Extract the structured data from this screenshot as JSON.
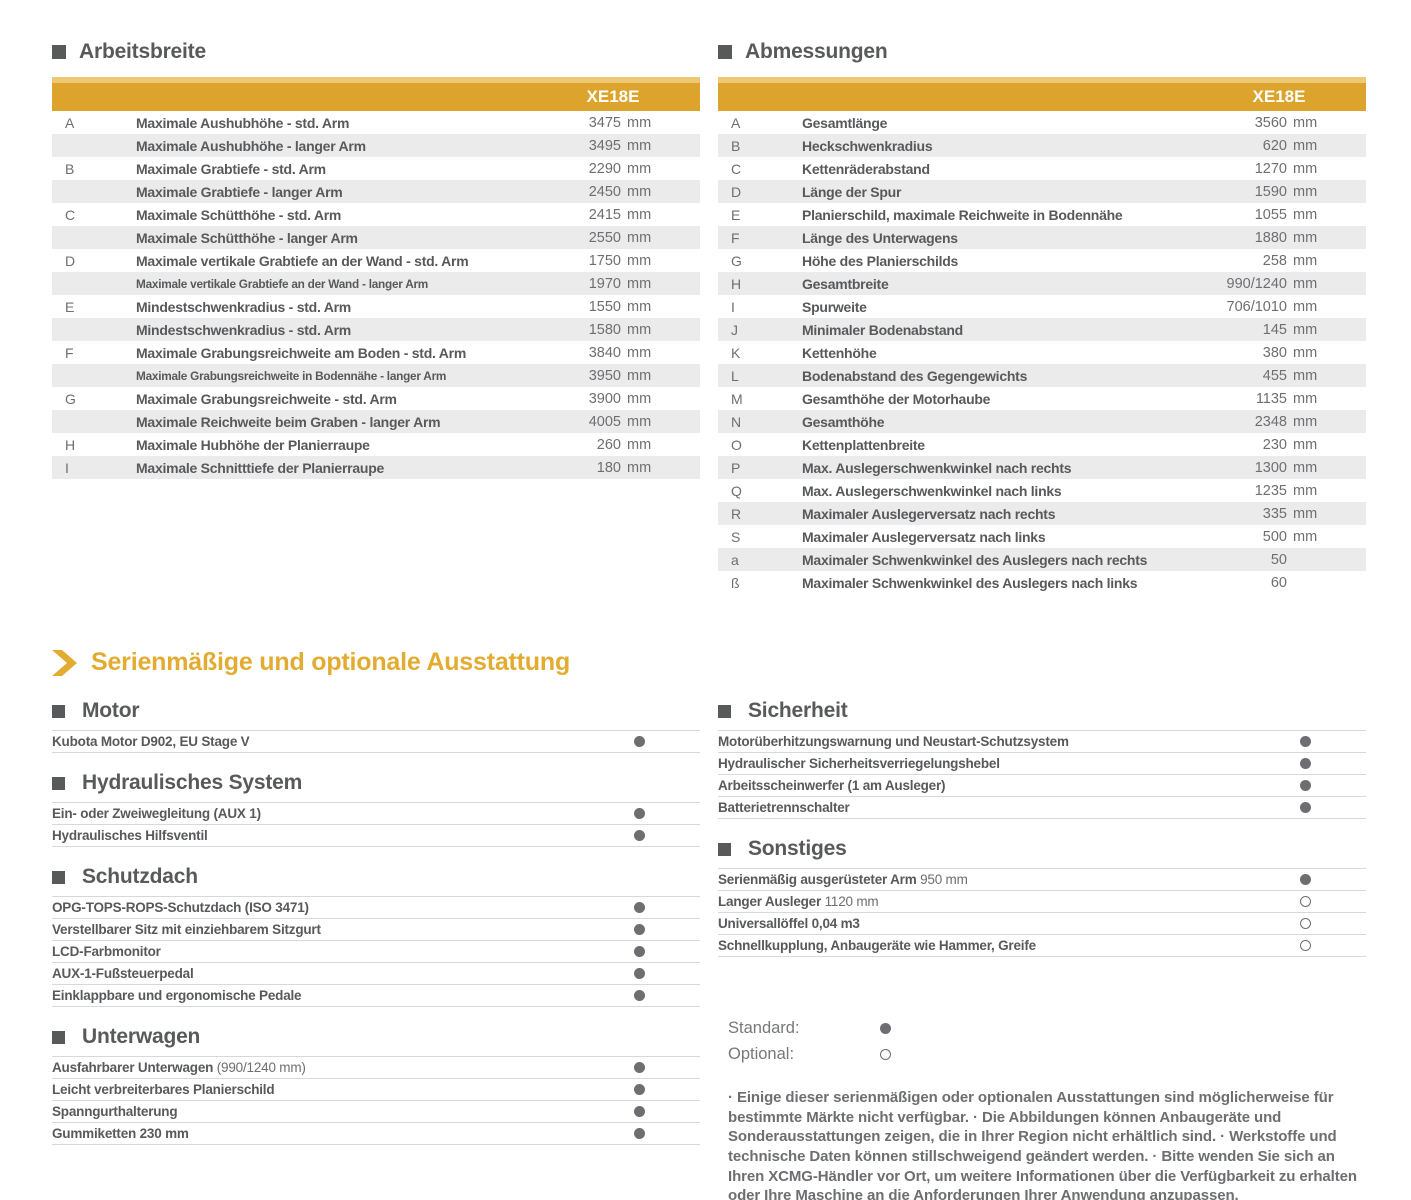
{
  "colors": {
    "gold": "#DCA32D",
    "gold_light": "#ECC972",
    "heading_gold": "#E3AC31",
    "ink": "#58595B",
    "gray": "#6D6E71",
    "zebra": "#EBEBEB",
    "line": "#D7D8DA"
  },
  "tables": {
    "arbeitsbreite": {
      "title": "Arbeitsbreite",
      "model": "XE18E",
      "rows": [
        {
          "key": "A",
          "label": "Maximale Aushubhöhe - std. Arm",
          "num": "3475",
          "unit": "mm"
        },
        {
          "key": "",
          "label": "Maximale Aushubhöhe - langer Arm",
          "num": "3495",
          "unit": "mm"
        },
        {
          "key": "B",
          "label": "Maximale Grabtiefe - std. Arm",
          "num": "2290",
          "unit": "mm"
        },
        {
          "key": "",
          "label": "Maximale Grabtiefe - langer Arm",
          "num": "2450",
          "unit": "mm"
        },
        {
          "key": "C",
          "label": "Maximale Schütthöhe - std. Arm",
          "num": "2415",
          "unit": "mm"
        },
        {
          "key": "",
          "label": "Maximale Schütthöhe - langer Arm",
          "num": "2550",
          "unit": "mm"
        },
        {
          "key": "D",
          "label": "Maximale vertikale Grabtiefe an der Wand - std. Arm",
          "num": "1750",
          "unit": "mm"
        },
        {
          "key": "",
          "label": "Maximale vertikale Grabtiefe an der Wand - langer Arm",
          "num": "1970",
          "unit": "mm",
          "small": true
        },
        {
          "key": "E",
          "label": "Mindestschwenkradius - std. Arm",
          "num": "1550",
          "unit": "mm"
        },
        {
          "key": "",
          "label": "Mindestschwenkradius - std. Arm",
          "num": "1580",
          "unit": "mm"
        },
        {
          "key": "F",
          "label": "Maximale Grabungsreichweite am Boden - std. Arm",
          "num": "3840",
          "unit": "mm"
        },
        {
          "key": "",
          "label": "Maximale Grabungsreichweite in Bodennähe - langer Arm",
          "num": "3950",
          "unit": "mm",
          "small": true
        },
        {
          "key": "G",
          "label": "Maximale Grabungsreichweite - std. Arm",
          "num": "3900",
          "unit": "mm"
        },
        {
          "key": "",
          "label": "Maximale Reichweite beim Graben - langer Arm",
          "num": "4005",
          "unit": "mm"
        },
        {
          "key": "H",
          "label": "Maximale Hubhöhe der Planierraupe",
          "num": "260",
          "unit": "mm"
        },
        {
          "key": "I",
          "label": "Maximale Schnitttiefe der Planierraupe",
          "num": "180",
          "unit": "mm"
        }
      ]
    },
    "abmessungen": {
      "title": "Abmessungen",
      "model": "XE18E",
      "rows": [
        {
          "key": "A",
          "label": "Gesamtlänge",
          "num": "3560",
          "unit": "mm"
        },
        {
          "key": "B",
          "label": "Heckschwenkradius",
          "num": "620",
          "unit": "mm"
        },
        {
          "key": "C",
          "label": "Kettenräderabstand",
          "num": "1270",
          "unit": "mm"
        },
        {
          "key": "D",
          "label": "Länge der Spur",
          "num": "1590",
          "unit": "mm"
        },
        {
          "key": "E",
          "label": "Planierschild, maximale Reichweite in Bodennähe",
          "num": "1055",
          "unit": "mm"
        },
        {
          "key": "F",
          "label": "Länge des Unterwagens",
          "num": "1880",
          "unit": "mm"
        },
        {
          "key": "G",
          "label": "Höhe des Planierschilds",
          "num": "258",
          "unit": "mm"
        },
        {
          "key": "H",
          "label": "Gesamtbreite",
          "num": "990/1240",
          "unit": "mm"
        },
        {
          "key": "I",
          "label": "Spurweite",
          "num": "706/1010",
          "unit": "mm"
        },
        {
          "key": "J",
          "label": "Minimaler Bodenabstand",
          "num": "145",
          "unit": "mm"
        },
        {
          "key": "K",
          "label": "Kettenhöhe",
          "num": "380",
          "unit": "mm"
        },
        {
          "key": "L",
          "label": "Bodenabstand des Gegengewichts",
          "num": "455",
          "unit": "mm"
        },
        {
          "key": "M",
          "label": "Gesamthöhe der Motorhaube",
          "num": "1135",
          "unit": "mm"
        },
        {
          "key": "N",
          "label": "Gesamthöhe",
          "num": "2348",
          "unit": "mm"
        },
        {
          "key": "O",
          "label": "Kettenplattenbreite",
          "num": "230",
          "unit": "mm"
        },
        {
          "key": "P",
          "label": "Max. Auslegerschwenkwinkel nach rechts",
          "num": "1300",
          "unit": "mm"
        },
        {
          "key": "Q",
          "label": "Max. Auslegerschwenkwinkel nach links",
          "num": "1235",
          "unit": "mm"
        },
        {
          "key": "R",
          "label": "Maximaler Auslegerversatz nach rechts",
          "num": "335",
          "unit": "mm"
        },
        {
          "key": "S",
          "label": "Maximaler Auslegerversatz nach links",
          "num": "500",
          "unit": "mm"
        },
        {
          "key": "a",
          "label": "Maximaler Schwenkwinkel des Auslegers nach rechts",
          "num": "50",
          "unit": ""
        },
        {
          "key": "ß",
          "label": "Maximaler Schwenkwinkel des Auslegers nach links",
          "num": "60",
          "unit": ""
        }
      ]
    }
  },
  "equipment": {
    "title": "Serienmäßige und optionale Ausstattung",
    "left_sections": [
      {
        "title": "Motor",
        "items": [
          {
            "label": "Kubota Motor D902, EU Stage V",
            "suffix": "",
            "marker": "standard"
          }
        ]
      },
      {
        "title": "Hydraulisches System",
        "items": [
          {
            "label": "Ein- oder Zweiwegleitung (AUX 1)",
            "suffix": "",
            "marker": "standard"
          },
          {
            "label": "Hydraulisches Hilfsventil",
            "suffix": "",
            "marker": "standard"
          }
        ]
      },
      {
        "title": "Schutzdach",
        "items": [
          {
            "label": "OPG-TOPS-ROPS-Schutzdach (ISO 3471)",
            "suffix": "",
            "marker": "standard"
          },
          {
            "label": "Verstellbarer Sitz mit einziehbarem Sitzgurt",
            "suffix": "",
            "marker": "standard"
          },
          {
            "label": "LCD-Farbmonitor",
            "suffix": "",
            "marker": "standard"
          },
          {
            "label": "AUX-1-Fußsteuerpedal",
            "suffix": "",
            "marker": "standard"
          },
          {
            "label": "Einklappbare und ergonomische Pedale",
            "suffix": "",
            "marker": "standard"
          }
        ]
      },
      {
        "title": "Unterwagen",
        "items": [
          {
            "label": "Ausfahrbarer Unterwagen",
            "suffix": " (990/1240 mm)",
            "marker": "standard"
          },
          {
            "label": "Leicht verbreiterbares Planierschild",
            "suffix": "",
            "marker": "standard"
          },
          {
            "label": "Spanngurthalterung",
            "suffix": "",
            "marker": "standard"
          },
          {
            "label": "Gummiketten 230 mm",
            "suffix": "",
            "marker": "standard"
          }
        ]
      }
    ],
    "right_sections": [
      {
        "title": "Sicherheit",
        "items": [
          {
            "label": "Motorüberhitzungswarnung und Neustart-Schutzsystem",
            "suffix": "",
            "marker": "standard"
          },
          {
            "label": "Hydraulischer Sicherheitsverriegelungshebel",
            "suffix": "",
            "marker": "standard"
          },
          {
            "label": "Arbeitsscheinwerfer (1 am Ausleger)",
            "suffix": "",
            "marker": "standard"
          },
          {
            "label": "Batterietrennschalter",
            "suffix": "",
            "marker": "standard"
          }
        ]
      },
      {
        "title": "Sonstiges",
        "items": [
          {
            "label": "Serienmäßig ausgerüsteter Arm",
            "suffix": " 950 mm",
            "marker": "standard"
          },
          {
            "label": "Langer Ausleger",
            "suffix": " 1120 mm",
            "marker": "optional"
          },
          {
            "label": "Universallöffel 0,04 m3",
            "suffix": "",
            "marker": "optional"
          },
          {
            "label": "Schnellkupplung, Anbaugeräte wie Hammer, Greife",
            "suffix": "",
            "marker": "optional"
          }
        ]
      }
    ],
    "legend": {
      "standard_label": "Standard:",
      "optional_label": "Optional:"
    },
    "footnote": "· Einige dieser serienmäßigen oder optionalen Ausstattungen sind möglicherweise für bestimmte Märkte nicht verfügbar. · Die Abbildungen können Anbaugeräte und Sonderausstattungen zeigen, die in Ihrer Region nicht erhältlich sind. · Werkstoffe und technische Daten können stillschweigend geändert werden. · Bitte wenden Sie sich an Ihren XCMG-Händler vor Ort, um weitere Informationen über die Verfügbarkeit zu erhalten oder Ihre Maschine an die Anforderungen Ihrer Anwendung anzupassen."
  }
}
